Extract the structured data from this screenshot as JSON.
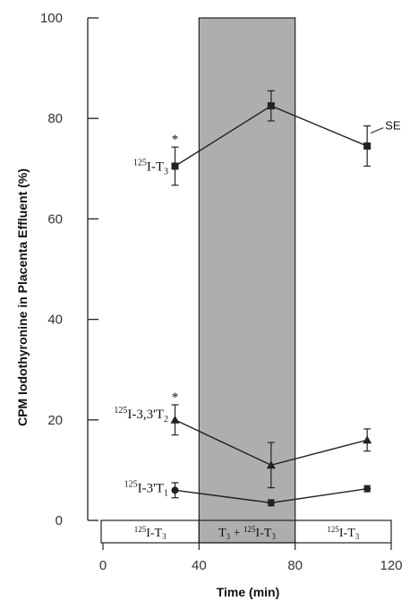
{
  "chart_data": {
    "type": "line",
    "xlabel": "Time (min)",
    "ylabel": "CPM Iodothyronine in Placenta Effluent (%)",
    "xlim": [
      0,
      120
    ],
    "ylim": [
      0,
      100
    ],
    "x_ticks": [
      "0",
      "40",
      "80",
      "120"
    ],
    "y_ticks": [
      "0",
      "20",
      "40",
      "60",
      "80",
      "100"
    ],
    "shaded_region": {
      "x_start": 40,
      "x_end": 80,
      "color": "#9a9a9a"
    },
    "x": [
      30,
      70,
      110
    ],
    "series": [
      {
        "name": "125I-T3",
        "label_main": "I-T",
        "label_sub": "3",
        "marker": "square",
        "values": [
          70.5,
          82.5,
          74.5
        ],
        "se": [
          3.8,
          3.0,
          4.0
        ]
      },
      {
        "name": "125I-3,3'T2",
        "label_main": "I-3,3'T",
        "label_sub": "2",
        "marker": "triangle",
        "values": [
          20.0,
          11.0,
          16.0
        ],
        "se": [
          3.0,
          4.5,
          2.2
        ]
      },
      {
        "name": "125I-3'T1",
        "label_main": "I-3'T",
        "label_sub": "1",
        "marker": "circle",
        "values": [
          6.0,
          3.5,
          6.3
        ],
        "se": [
          1.5,
          0.6,
          0.6
        ]
      }
    ],
    "annotations": {
      "significance_marker": "*",
      "se_label": "SE"
    },
    "protocol_boxes": [
      {
        "x_start": 0,
        "x_end": 40,
        "text": "I-T",
        "sub": "3"
      },
      {
        "x_start": 40,
        "x_end": 80,
        "text_prefix": "T",
        "prefix_sub": "3",
        "plus": " + ",
        "text": "I-T",
        "sub": "3"
      },
      {
        "x_start": 80,
        "x_end": 120,
        "text": "I-T",
        "sub": "3"
      }
    ],
    "isotope_prefix": "125"
  }
}
